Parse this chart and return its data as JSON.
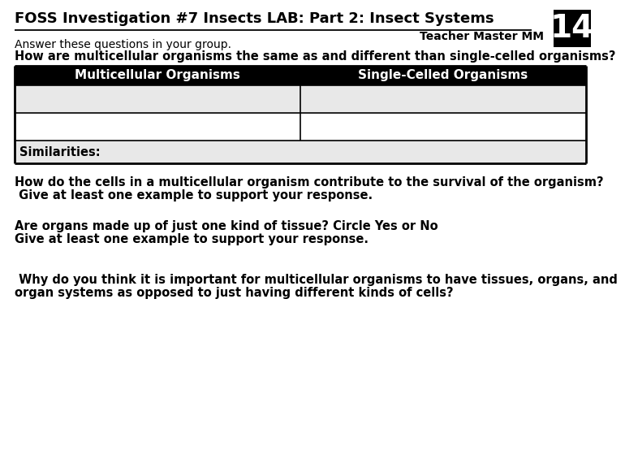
{
  "title": "FOSS Investigation #7 Insects LAB: Part 2: Insect Systems",
  "page_num": "14",
  "teacher_master": "Teacher Master MM",
  "answer_line": "Answer these questions in your group.",
  "question1": "How are multicellular organisms the same as and different than single-celled organisms?",
  "col1_header": "Multicellular Organisms",
  "col2_header": "Single-Celled Organisms",
  "similarities_label": "Similarities:",
  "question2_line1": "How do the cells in a multicellular organism contribute to the survival of the organism?",
  "question2_line2": " Give at least one example to support your response.",
  "question3_line1": "Are organs made up of just one kind of tissue? Circle Yes or No",
  "question3_line2": "Give at least one example to support your response.",
  "question4_line1": " Why do you think it is important for multicellular organisms to have tissues, organs, and",
  "question4_line2": "organ systems as opposed to just having different kinds of cells?",
  "bg_color": "#ffffff",
  "table_header_bg": "#000000",
  "table_header_fg": "#ffffff",
  "table_cell_bg": "#e8e8e8",
  "table_cell_bg2": "#ffffff",
  "table_border": "#000000",
  "page_box_bg": "#000000",
  "page_box_fg": "#ffffff"
}
